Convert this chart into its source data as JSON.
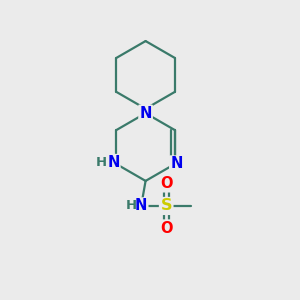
{
  "background_color": "#ebebeb",
  "bond_color": "#3a7a6a",
  "n_color": "#0000ee",
  "o_color": "#ff0000",
  "s_color": "#cccc00",
  "line_width": 1.6,
  "font_size": 10.5,
  "figsize": [
    3.0,
    3.0
  ],
  "dpi": 100,
  "xlim": [
    0,
    10
  ],
  "ylim": [
    0,
    10
  ]
}
